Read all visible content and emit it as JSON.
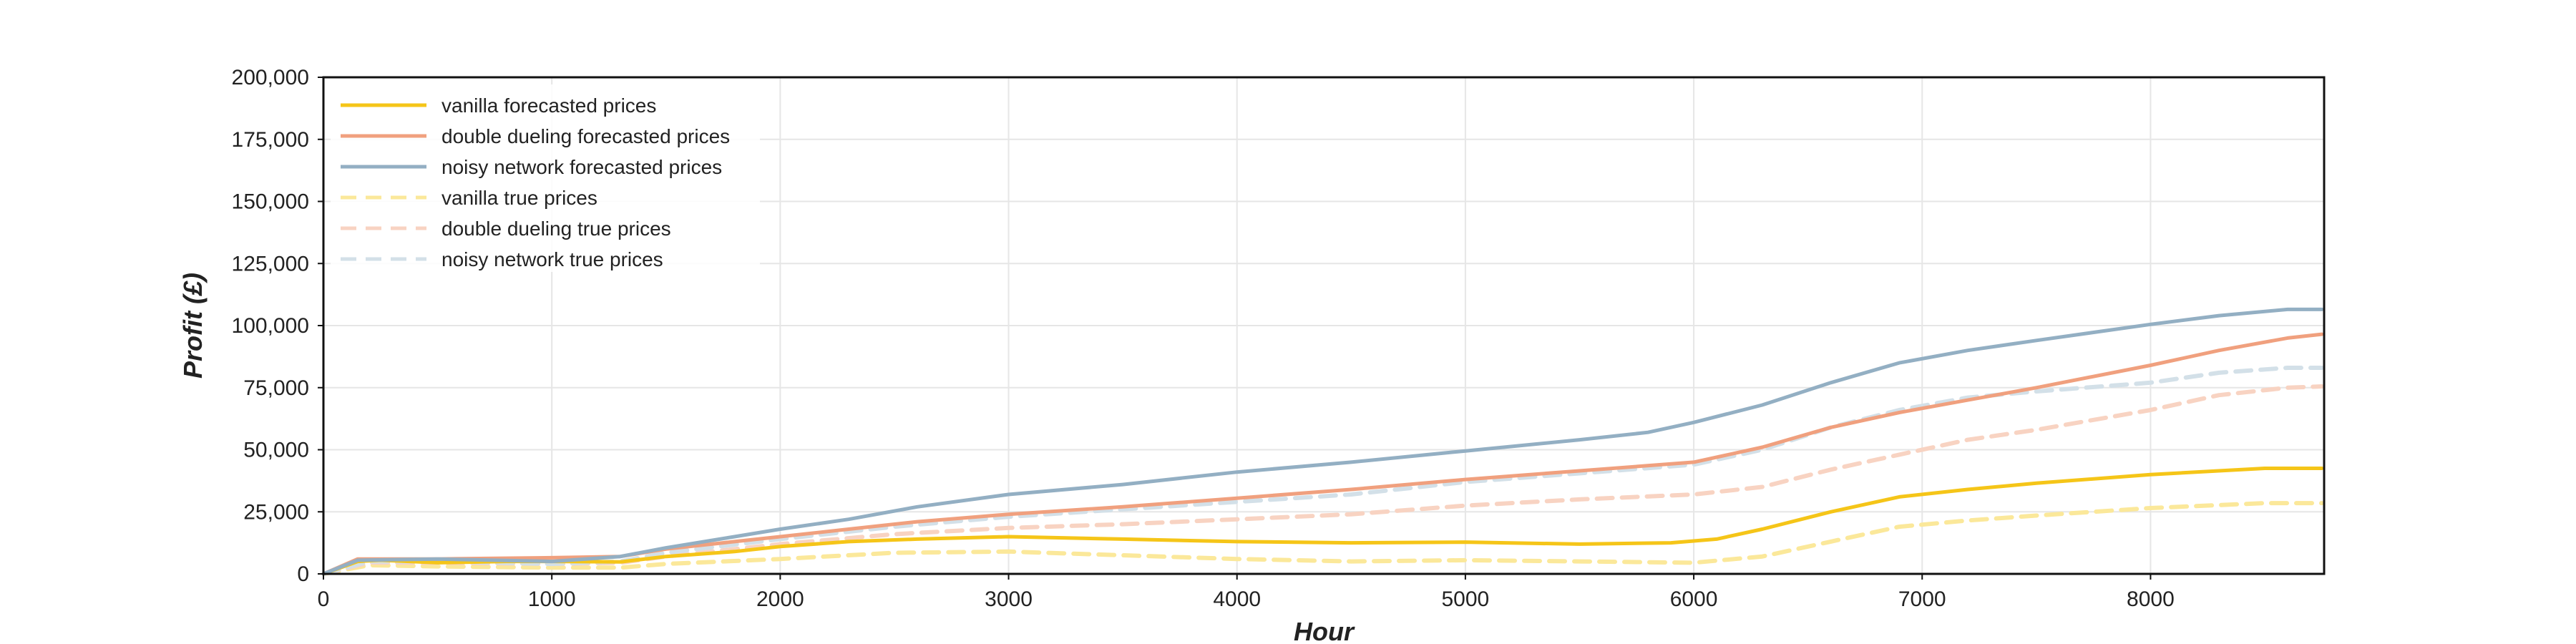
{
  "chart_data": {
    "type": "line",
    "title": "",
    "xlabel": "Hour",
    "ylabel": "Profit (£)",
    "xlim": [
      0,
      8760
    ],
    "ylim": [
      0,
      200000
    ],
    "x_ticks": [
      0,
      1000,
      2000,
      3000,
      4000,
      5000,
      6000,
      7000,
      8000
    ],
    "x_tick_labels": [
      "0",
      "1000",
      "2000",
      "3000",
      "4000",
      "5000",
      "6000",
      "7000",
      "8000"
    ],
    "y_ticks": [
      0,
      25000,
      50000,
      75000,
      100000,
      125000,
      150000,
      175000,
      200000
    ],
    "y_tick_labels": [
      "0",
      "25,000",
      "50,000",
      "75,000",
      "100,000",
      "125,000",
      "150,000",
      "175,000",
      "200,000"
    ],
    "grid": true,
    "legend_position": "top-left",
    "series": [
      {
        "name": "vanilla forecasted prices",
        "color": "#F5C518",
        "style": "solid",
        "x": [
          0,
          150,
          250,
          500,
          800,
          1000,
          1300,
          1500,
          1800,
          2000,
          2300,
          2600,
          3000,
          3500,
          4000,
          4500,
          5000,
          5500,
          5900,
          6100,
          6300,
          6600,
          6900,
          7200,
          7500,
          8000,
          8500,
          8750
        ],
        "values": [
          0,
          5000,
          5500,
          4500,
          5000,
          5000,
          4800,
          7000,
          9000,
          11000,
          13000,
          14000,
          15000,
          14000,
          13000,
          12500,
          12800,
          12000,
          12500,
          14000,
          18000,
          25000,
          31000,
          34000,
          36500,
          40000,
          42500,
          42500
        ]
      },
      {
        "name": "double dueling forecasted prices",
        "color": "#F0A07E",
        "style": "solid",
        "x": [
          0,
          150,
          500,
          1000,
          1300,
          1500,
          1800,
          2000,
          2300,
          2600,
          3000,
          3500,
          4000,
          4500,
          5000,
          5500,
          6000,
          6300,
          6600,
          6900,
          7200,
          7500,
          8000,
          8300,
          8600,
          8750
        ],
        "values": [
          0,
          6000,
          6000,
          6500,
          7000,
          10000,
          13000,
          15000,
          18000,
          21000,
          24000,
          27000,
          30500,
          34000,
          38000,
          41500,
          45000,
          51000,
          59000,
          65000,
          70000,
          75000,
          84000,
          90000,
          95000,
          96500
        ]
      },
      {
        "name": "noisy network forecasted prices",
        "color": "#93AFC3",
        "style": "solid",
        "x": [
          0,
          150,
          500,
          1000,
          1300,
          1500,
          1800,
          2000,
          2300,
          2600,
          3000,
          3500,
          4000,
          4500,
          5000,
          5500,
          5800,
          6000,
          6300,
          6600,
          6900,
          7200,
          7500,
          8000,
          8300,
          8600,
          8750
        ],
        "values": [
          0,
          5500,
          6000,
          5000,
          7000,
          10500,
          15000,
          18000,
          22000,
          27000,
          32000,
          36000,
          41000,
          45000,
          49500,
          54000,
          57000,
          61000,
          68000,
          77000,
          85000,
          90000,
          94000,
          100500,
          104000,
          106500,
          106500
        ]
      },
      {
        "name": "vanilla true prices",
        "color": "#FBE89A",
        "style": "dashed",
        "x": [
          0,
          200,
          500,
          1000,
          1300,
          1500,
          2000,
          2500,
          3000,
          3500,
          4000,
          4500,
          5000,
          5500,
          6000,
          6300,
          6600,
          6900,
          7200,
          7500,
          8000,
          8500,
          8750
        ],
        "values": [
          0,
          3500,
          3000,
          2500,
          2500,
          4000,
          6000,
          8500,
          9000,
          7500,
          6000,
          5000,
          5500,
          5000,
          4500,
          7000,
          13000,
          19000,
          21500,
          23500,
          26500,
          28500,
          28500
        ]
      },
      {
        "name": "double dueling true prices",
        "color": "#F8D3C2",
        "style": "dashed",
        "x": [
          0,
          200,
          500,
          1000,
          1300,
          1500,
          2000,
          2500,
          3000,
          3500,
          4000,
          4500,
          5000,
          5500,
          6000,
          6300,
          6600,
          6900,
          7200,
          7500,
          8000,
          8300,
          8600,
          8750
        ],
        "values": [
          0,
          4500,
          4500,
          4000,
          4500,
          7000,
          12000,
          16000,
          18500,
          20000,
          22000,
          24000,
          27500,
          30000,
          32000,
          35000,
          42000,
          48000,
          54000,
          58000,
          66000,
          72000,
          75000,
          75500
        ]
      },
      {
        "name": "noisy network true prices",
        "color": "#D3E0E8",
        "style": "dashed",
        "x": [
          0,
          200,
          500,
          1000,
          1300,
          1500,
          2000,
          2500,
          3000,
          3500,
          4000,
          4500,
          5000,
          5500,
          6000,
          6300,
          6600,
          6900,
          7200,
          7500,
          8000,
          8300,
          8600,
          8750
        ],
        "values": [
          0,
          5000,
          5000,
          4000,
          5000,
          8500,
          14000,
          19000,
          23000,
          26000,
          29000,
          32000,
          37000,
          40500,
          44000,
          50000,
          59000,
          66000,
          71000,
          73500,
          77000,
          81000,
          83000,
          83000
        ]
      }
    ]
  }
}
